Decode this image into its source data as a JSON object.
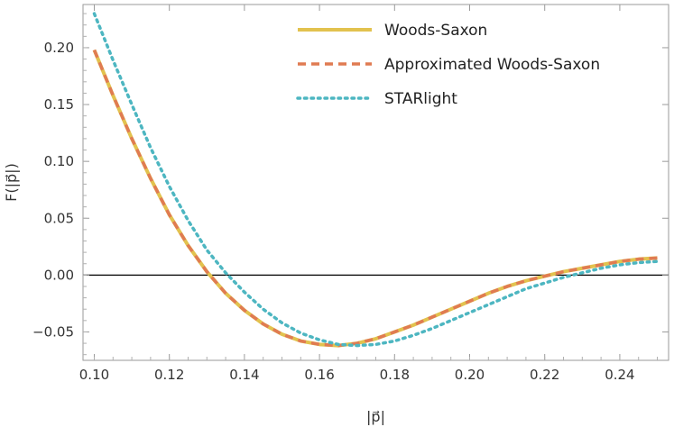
{
  "chart_data": {
    "type": "line",
    "title": "",
    "xlabel": "|p⃗|",
    "ylabel": "F(|p⃗|)",
    "xlim": [
      0.097,
      0.253
    ],
    "ylim": [
      -0.075,
      0.238
    ],
    "xticks": [
      0.1,
      0.12,
      0.14,
      0.16,
      0.18,
      0.2,
      0.22,
      0.24
    ],
    "xtick_labels": [
      "0.10",
      "0.12",
      "0.14",
      "0.16",
      "0.18",
      "0.20",
      "0.22",
      "0.24"
    ],
    "yticks": [
      -0.05,
      0.0,
      0.05,
      0.1,
      0.15,
      0.2
    ],
    "ytick_labels": [
      "−0.05",
      "0.00",
      "0.05",
      "0.10",
      "0.15",
      "0.20"
    ],
    "zero_line": true,
    "grid": false,
    "legend_position": "top-right",
    "series": [
      {
        "name": "Woods-Saxon",
        "color": "#e2c24e",
        "style": "solid",
        "x": [
          0.1,
          0.105,
          0.11,
          0.115,
          0.12,
          0.125,
          0.13,
          0.135,
          0.14,
          0.145,
          0.15,
          0.155,
          0.16,
          0.165,
          0.17,
          0.175,
          0.18,
          0.185,
          0.19,
          0.195,
          0.2,
          0.205,
          0.21,
          0.215,
          0.22,
          0.225,
          0.23,
          0.235,
          0.24,
          0.245,
          0.25
        ],
        "y": [
          0.198,
          0.158,
          0.12,
          0.085,
          0.053,
          0.026,
          0.003,
          -0.016,
          -0.031,
          -0.043,
          -0.052,
          -0.058,
          -0.061,
          -0.062,
          -0.06,
          -0.056,
          -0.05,
          -0.044,
          -0.037,
          -0.03,
          -0.023,
          -0.016,
          -0.01,
          -0.005,
          -0.001,
          0.003,
          0.006,
          0.009,
          0.012,
          0.014,
          0.015
        ]
      },
      {
        "name": "Approximated Woods-Saxon",
        "color": "#e07b52",
        "style": "dashed",
        "x": [
          0.1,
          0.105,
          0.11,
          0.115,
          0.12,
          0.125,
          0.13,
          0.135,
          0.14,
          0.145,
          0.15,
          0.155,
          0.16,
          0.165,
          0.17,
          0.175,
          0.18,
          0.185,
          0.19,
          0.195,
          0.2,
          0.205,
          0.21,
          0.215,
          0.22,
          0.225,
          0.23,
          0.235,
          0.24,
          0.245,
          0.25
        ],
        "y": [
          0.198,
          0.158,
          0.12,
          0.085,
          0.053,
          0.026,
          0.003,
          -0.016,
          -0.031,
          -0.043,
          -0.052,
          -0.058,
          -0.061,
          -0.062,
          -0.06,
          -0.056,
          -0.05,
          -0.044,
          -0.037,
          -0.03,
          -0.023,
          -0.016,
          -0.01,
          -0.005,
          -0.001,
          0.003,
          0.006,
          0.009,
          0.012,
          0.014,
          0.015
        ]
      },
      {
        "name": "STARlight",
        "color": "#4db6c1",
        "style": "dotted",
        "x": [
          0.1,
          0.105,
          0.11,
          0.115,
          0.12,
          0.125,
          0.13,
          0.135,
          0.14,
          0.145,
          0.15,
          0.155,
          0.16,
          0.165,
          0.17,
          0.175,
          0.18,
          0.185,
          0.19,
          0.195,
          0.2,
          0.205,
          0.21,
          0.215,
          0.22,
          0.225,
          0.23,
          0.235,
          0.24,
          0.245,
          0.25
        ],
        "y": [
          0.23,
          0.189,
          0.15,
          0.112,
          0.078,
          0.048,
          0.022,
          0.002,
          -0.015,
          -0.03,
          -0.042,
          -0.051,
          -0.057,
          -0.061,
          -0.062,
          -0.061,
          -0.058,
          -0.053,
          -0.047,
          -0.04,
          -0.033,
          -0.026,
          -0.019,
          -0.012,
          -0.007,
          -0.002,
          0.002,
          0.006,
          0.009,
          0.011,
          0.012
        ]
      }
    ]
  }
}
